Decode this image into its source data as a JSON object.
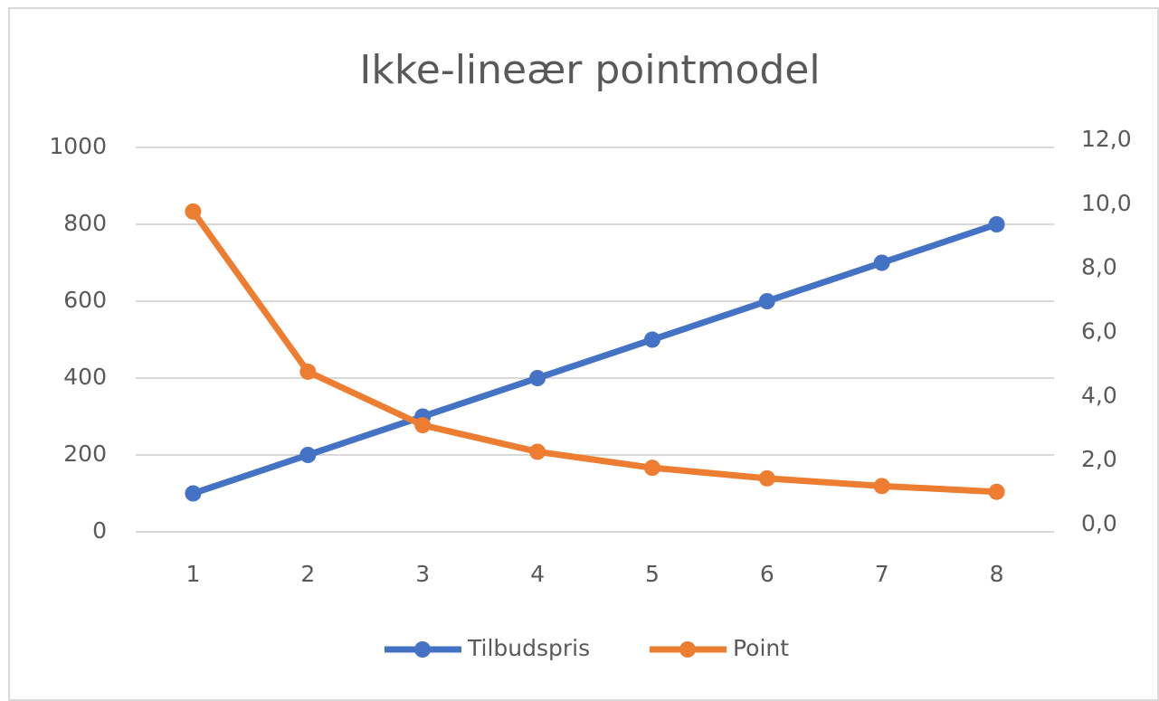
{
  "chart_data": {
    "type": "line",
    "title": "Ikke-lineær pointmodel",
    "categories": [
      "1",
      "2",
      "3",
      "4",
      "5",
      "6",
      "7",
      "8"
    ],
    "series": [
      {
        "name": "Tilbudspris",
        "color": "#4472c4",
        "values": [
          100,
          200,
          300,
          400,
          500,
          600,
          700,
          800
        ]
      },
      {
        "name": "Point",
        "color": "#ed7d31",
        "axis": "y2",
        "values": [
          10,
          5,
          3.33,
          2.5,
          2,
          1.67,
          1.43,
          1.25
        ]
      }
    ],
    "ylim": [
      0,
      1000
    ],
    "yticks": [
      0,
      200,
      400,
      600,
      800,
      1000
    ],
    "y2lim": [
      0,
      12
    ],
    "y2ticks": [
      {
        "value": 0,
        "label": "0,0"
      },
      {
        "value": 2,
        "label": "2,0"
      },
      {
        "value": 4,
        "label": "4,0"
      },
      {
        "value": 6,
        "label": "6,0"
      },
      {
        "value": 8,
        "label": "8,0"
      },
      {
        "value": 10,
        "label": "10,0"
      },
      {
        "value": 12,
        "label": "12,0"
      }
    ],
    "grid": true,
    "legend": "bottom"
  }
}
